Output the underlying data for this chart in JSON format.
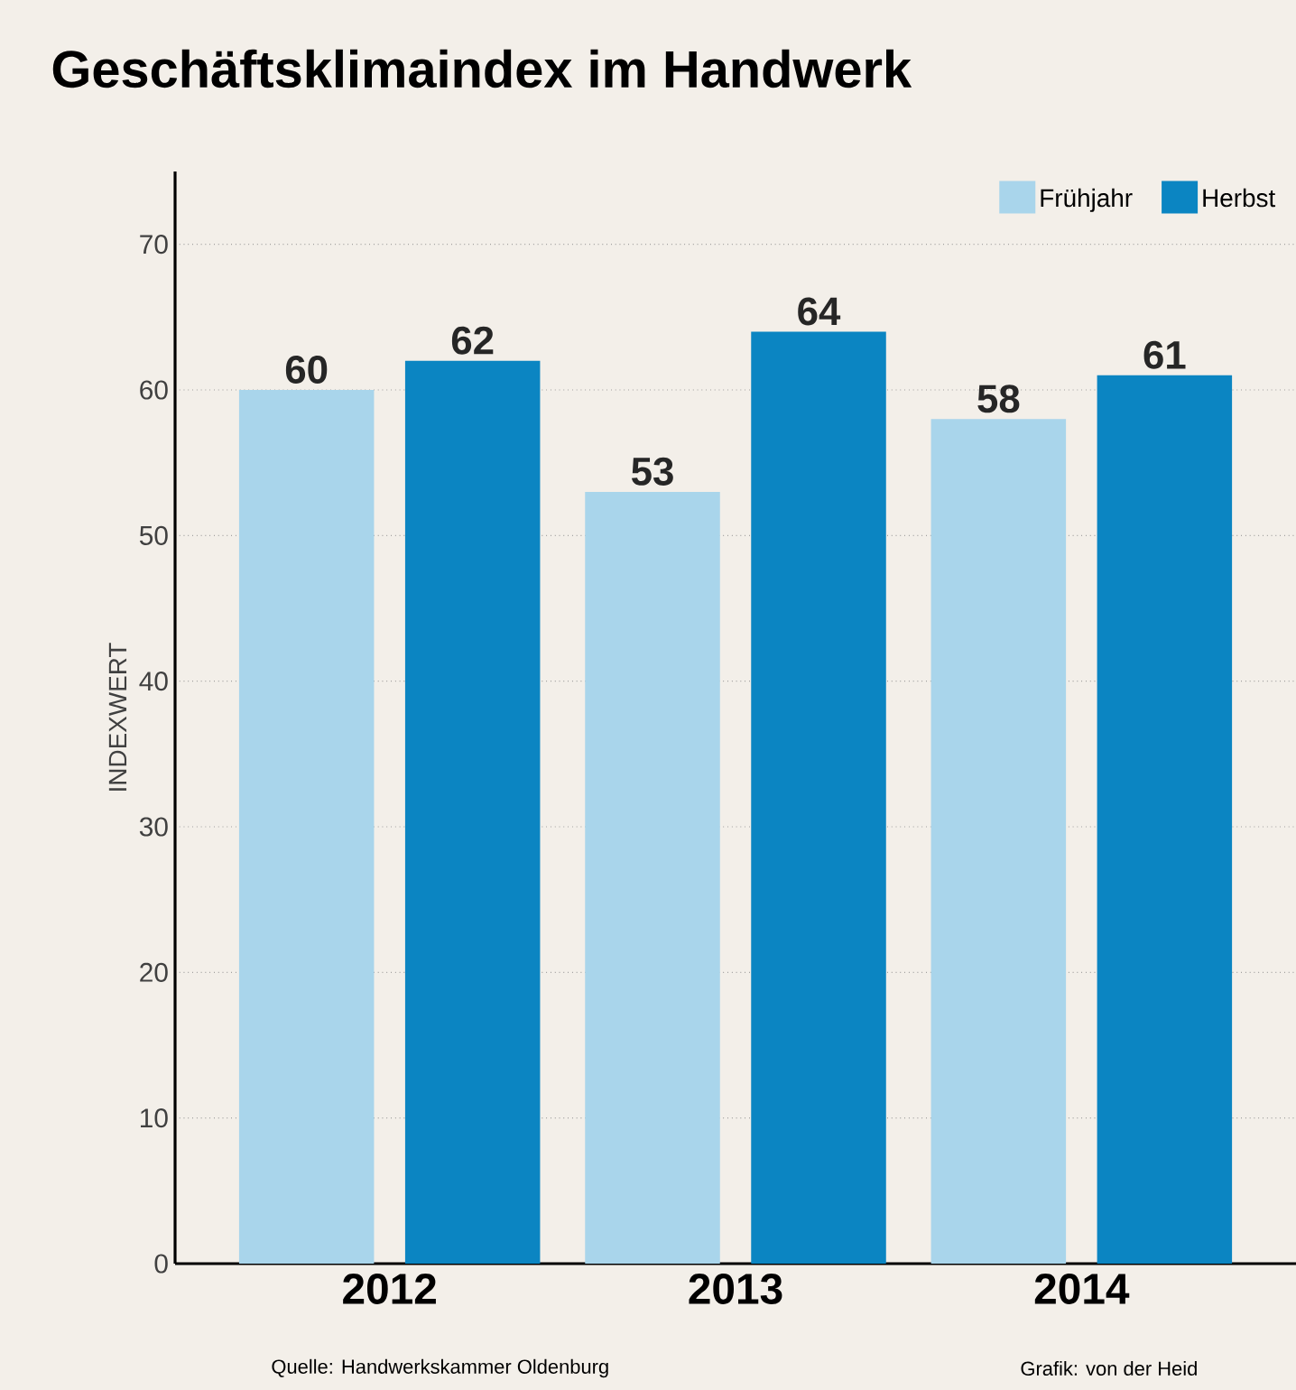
{
  "chart_data": {
    "type": "bar",
    "title": "Geschäftsklimaindex im Handwerk",
    "ylabel": "INDEXWERT",
    "categories": [
      "2012",
      "2013",
      "2014"
    ],
    "series": [
      {
        "name": "Frühjahr",
        "color": "#a9d5eb",
        "values": [
          60,
          53,
          58
        ]
      },
      {
        "name": "Herbst",
        "color": "#0b85c2",
        "values": [
          62,
          64,
          61
        ]
      }
    ],
    "ylim": [
      0,
      75
    ],
    "yticks": [
      0,
      10,
      20,
      30,
      40,
      50,
      60,
      70
    ],
    "grid": "y",
    "legend": "top right",
    "data_labels": true,
    "annotations": [
      "Quelle: Handwerkskammer Oldenburg",
      "Grafik: von der Heid"
    ]
  }
}
